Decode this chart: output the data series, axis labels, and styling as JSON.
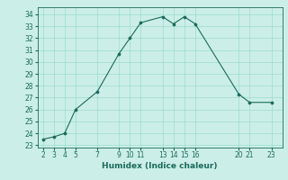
{
  "x": [
    2,
    3,
    4,
    5,
    7,
    9,
    10,
    11,
    13,
    14,
    15,
    16,
    20,
    21,
    23
  ],
  "y": [
    23.5,
    23.7,
    24.0,
    26.0,
    27.5,
    30.7,
    32.0,
    33.3,
    33.8,
    33.2,
    33.8,
    33.2,
    27.3,
    26.6,
    26.6
  ],
  "xticks": [
    2,
    3,
    4,
    5,
    7,
    9,
    10,
    11,
    13,
    14,
    15,
    16,
    20,
    21,
    23
  ],
  "yticks": [
    23,
    24,
    25,
    26,
    27,
    28,
    29,
    30,
    31,
    32,
    33,
    34
  ],
  "ylim": [
    22.8,
    34.6
  ],
  "xlim": [
    1.5,
    24.0
  ],
  "xlabel": "Humidex (Indice chaleur)",
  "line_color": "#1a6b5a",
  "marker": "o",
  "marker_size": 2.2,
  "bg_color": "#cceee8",
  "grid_color": "#99ddcc",
  "xlabel_color": "#1a6b5a",
  "tick_color": "#1a6b5a",
  "tick_fontsize": 5.5,
  "xlabel_fontsize": 6.5
}
